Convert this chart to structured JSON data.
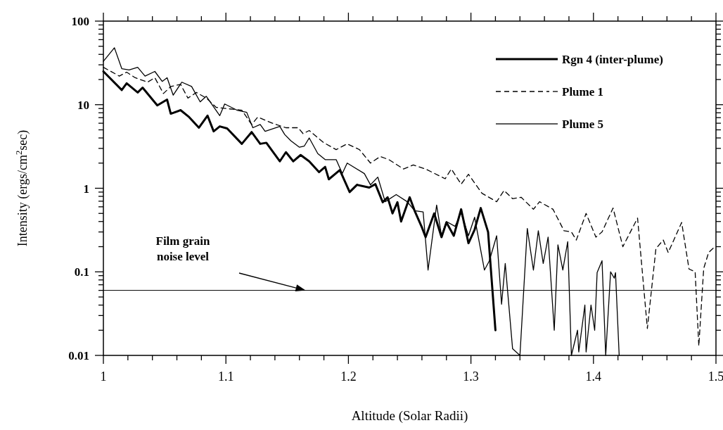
{
  "chart_data": {
    "type": "line",
    "xlabel": "Altitude (Solar Radii)",
    "ylabel": "Intensity (ergs/cm$^{2}$sec)",
    "log": "y",
    "grid": false,
    "legend": "top right",
    "xlim": [
      1,
      1.5
    ],
    "ylim": [
      0.01,
      100
    ],
    "xticks": [
      1,
      {
        "value": 1.02,
        "label": null
      },
      {
        "value": 1.04,
        "label": null
      },
      {
        "value": 1.06,
        "label": null
      },
      {
        "value": 1.08,
        "label": null
      },
      1.1,
      {
        "value": 1.12,
        "label": null
      },
      {
        "value": 1.14,
        "label": null
      },
      {
        "value": 1.16,
        "label": null
      },
      {
        "value": 1.18,
        "label": null
      },
      1.2,
      {
        "value": 1.22,
        "label": null
      },
      {
        "value": 1.24,
        "label": null
      },
      {
        "value": 1.26,
        "label": null
      },
      {
        "value": 1.28,
        "label": null
      },
      1.3,
      {
        "value": 1.32,
        "label": null
      },
      {
        "value": 1.34,
        "label": null
      },
      {
        "value": 1.36,
        "label": null
      },
      {
        "value": 1.38,
        "label": null
      },
      1.4,
      {
        "value": 1.42,
        "label": null
      },
      {
        "value": 1.44,
        "label": null
      },
      {
        "value": 1.46,
        "label": null
      },
      {
        "value": 1.48,
        "label": null
      },
      1.5
    ],
    "yticks": [
      0.01,
      {
        "value": 0.02,
        "label": null
      },
      {
        "value": 0.03,
        "label": null
      },
      {
        "value": 0.04,
        "label": null
      },
      {
        "value": 0.05,
        "label": null
      },
      {
        "value": 0.06,
        "label": null
      },
      {
        "value": 0.07,
        "label": null
      },
      {
        "value": 0.08,
        "label": null
      },
      {
        "value": 0.09,
        "label": null
      },
      0.1,
      {
        "value": 0.2,
        "label": null
      },
      {
        "value": 0.3,
        "label": null
      },
      {
        "value": 0.4,
        "label": null
      },
      {
        "value": 0.5,
        "label": null
      },
      {
        "value": 0.6,
        "label": null
      },
      {
        "value": 0.7,
        "label": null
      },
      {
        "value": 0.8,
        "label": null
      },
      {
        "value": 0.9,
        "label": null
      },
      1,
      {
        "value": 2,
        "label": null
      },
      {
        "value": 3,
        "label": null
      },
      {
        "value": 4,
        "label": null
      },
      {
        "value": 5,
        "label": null
      },
      {
        "value": 6,
        "label": null
      },
      {
        "value": 7,
        "label": null
      },
      {
        "value": 8,
        "label": null
      },
      {
        "value": 9,
        "label": null
      },
      10,
      {
        "value": 20,
        "label": null
      },
      {
        "value": 30,
        "label": null
      },
      {
        "value": 40,
        "label": null
      },
      {
        "value": 50,
        "label": null
      },
      {
        "value": 60,
        "label": null
      },
      {
        "value": 70,
        "label": null
      },
      {
        "value": 80,
        "label": null
      },
      {
        "value": 90,
        "label": null
      },
      100
    ],
    "ref_lines": [
      {
        "axis": "y",
        "value": 0.06,
        "label": "Film grain noise level",
        "color": "#000000",
        "line_style": "solid"
      }
    ],
    "series": [
      {
        "name": "Rgn 4 (inter-plume)",
        "color": "#000000",
        "line_style": "solid",
        "x": [
          1.0,
          1.015,
          1.019,
          1.028,
          1.032,
          1.044,
          1.052,
          1.055,
          1.063,
          1.07,
          1.078,
          1.085,
          1.09,
          1.095,
          1.101,
          1.113,
          1.121,
          1.128,
          1.133,
          1.144,
          1.149,
          1.155,
          1.161,
          1.168,
          1.176,
          1.181,
          1.184,
          1.193,
          1.201,
          1.207,
          1.217,
          1.222,
          1.228,
          1.232,
          1.236,
          1.24,
          1.243,
          1.25,
          1.254,
          1.26,
          1.263,
          1.27,
          1.276,
          1.28,
          1.286,
          1.292,
          1.298,
          1.303,
          1.308,
          1.314,
          1.32
        ],
        "values": [
          25,
          15,
          18,
          14,
          16,
          9.8,
          11.5,
          7.8,
          8.6,
          7.1,
          5.3,
          7.4,
          4.8,
          5.5,
          5.2,
          3.4,
          4.7,
          3.4,
          3.5,
          2.1,
          2.7,
          2.1,
          2.5,
          2.1,
          1.56,
          1.8,
          1.28,
          1.65,
          0.9,
          1.1,
          1.02,
          1.12,
          0.68,
          0.78,
          0.5,
          0.68,
          0.4,
          0.78,
          0.54,
          0.34,
          0.26,
          0.5,
          0.26,
          0.39,
          0.27,
          0.56,
          0.22,
          0.32,
          0.58,
          0.3,
          0.02
        ]
      },
      {
        "name": "Plume 1",
        "color": "#000000",
        "line_style": "dashed",
        "x": [
          1.0,
          1.013,
          1.019,
          1.026,
          1.036,
          1.042,
          1.049,
          1.055,
          1.063,
          1.069,
          1.076,
          1.084,
          1.092,
          1.103,
          1.113,
          1.121,
          1.126,
          1.138,
          1.149,
          1.159,
          1.163,
          1.168,
          1.18,
          1.19,
          1.199,
          1.209,
          1.218,
          1.226,
          1.233,
          1.245,
          1.253,
          1.263,
          1.279,
          1.284,
          1.292,
          1.298,
          1.309,
          1.321,
          1.327,
          1.334,
          1.341,
          1.351,
          1.356,
          1.367,
          1.376,
          1.382,
          1.386,
          1.394,
          1.402,
          1.407,
          1.416,
          1.424,
          1.436,
          1.444,
          1.451,
          1.457,
          1.461,
          1.472,
          1.478,
          1.483,
          1.486,
          1.49,
          1.494,
          1.499
        ],
        "values": [
          28,
          22,
          24.5,
          21,
          18.6,
          21,
          13.6,
          16.5,
          17.5,
          12,
          14,
          12,
          9.3,
          8.9,
          8.6,
          5.8,
          7.1,
          6,
          5.3,
          5.3,
          4.5,
          4.9,
          3.5,
          2.9,
          3.4,
          2.9,
          2,
          2.4,
          2.2,
          1.7,
          1.9,
          1.7,
          1.3,
          1.7,
          1.12,
          1.47,
          0.87,
          0.69,
          0.94,
          0.75,
          0.78,
          0.56,
          0.69,
          0.56,
          0.31,
          0.3,
          0.24,
          0.5,
          0.26,
          0.3,
          0.58,
          0.2,
          0.44,
          0.021,
          0.19,
          0.24,
          0.17,
          0.39,
          0.108,
          0.1,
          0.013,
          0.11,
          0.17,
          0.2
        ]
      },
      {
        "name": "Plume 5",
        "color": "#000000",
        "line_style": "solid",
        "x": [
          1.0,
          1.009,
          1.015,
          1.021,
          1.028,
          1.034,
          1.042,
          1.048,
          1.052,
          1.057,
          1.064,
          1.072,
          1.079,
          1.084,
          1.095,
          1.099,
          1.109,
          1.117,
          1.122,
          1.128,
          1.132,
          1.144,
          1.148,
          1.153,
          1.16,
          1.164,
          1.168,
          1.175,
          1.181,
          1.19,
          1.195,
          1.199,
          1.213,
          1.218,
          1.224,
          1.23,
          1.239,
          1.248,
          1.254,
          1.261,
          1.265,
          1.272,
          1.276,
          1.28,
          1.287,
          1.292,
          1.298,
          1.303,
          1.311,
          1.315,
          1.321,
          1.325,
          1.328,
          1.334,
          1.34,
          1.346,
          1.351,
          1.355,
          1.359,
          1.363,
          1.368,
          1.371,
          1.375,
          1.379,
          1.382,
          1.387,
          1.388,
          1.393,
          1.394,
          1.398,
          1.401,
          1.403,
          1.407,
          1.41,
          1.414,
          1.417,
          1.418,
          1.421
        ],
        "values": [
          33,
          48,
          27,
          26,
          28,
          22,
          25,
          19,
          21,
          13,
          18.6,
          16.5,
          10.8,
          12.6,
          7.4,
          10.2,
          8.6,
          8.1,
          5.3,
          5.8,
          4.8,
          5.5,
          4.4,
          3.7,
          3.1,
          3.2,
          4,
          2.6,
          2.2,
          2.2,
          1.5,
          2,
          1.5,
          1.1,
          1.36,
          0.69,
          0.84,
          0.69,
          0.54,
          0.52,
          0.105,
          0.63,
          0.27,
          0.4,
          0.35,
          0.51,
          0.27,
          0.45,
          0.105,
          0.135,
          0.27,
          0.041,
          0.126,
          0.012,
          0.01,
          0.33,
          0.105,
          0.31,
          0.126,
          0.26,
          0.02,
          0.21,
          0.105,
          0.23,
          0.01,
          0.02,
          0.011,
          0.04,
          0.011,
          0.04,
          0.02,
          0.098,
          0.136,
          0.01,
          0.1,
          0.084,
          0.098,
          0.01
        ]
      }
    ]
  }
}
